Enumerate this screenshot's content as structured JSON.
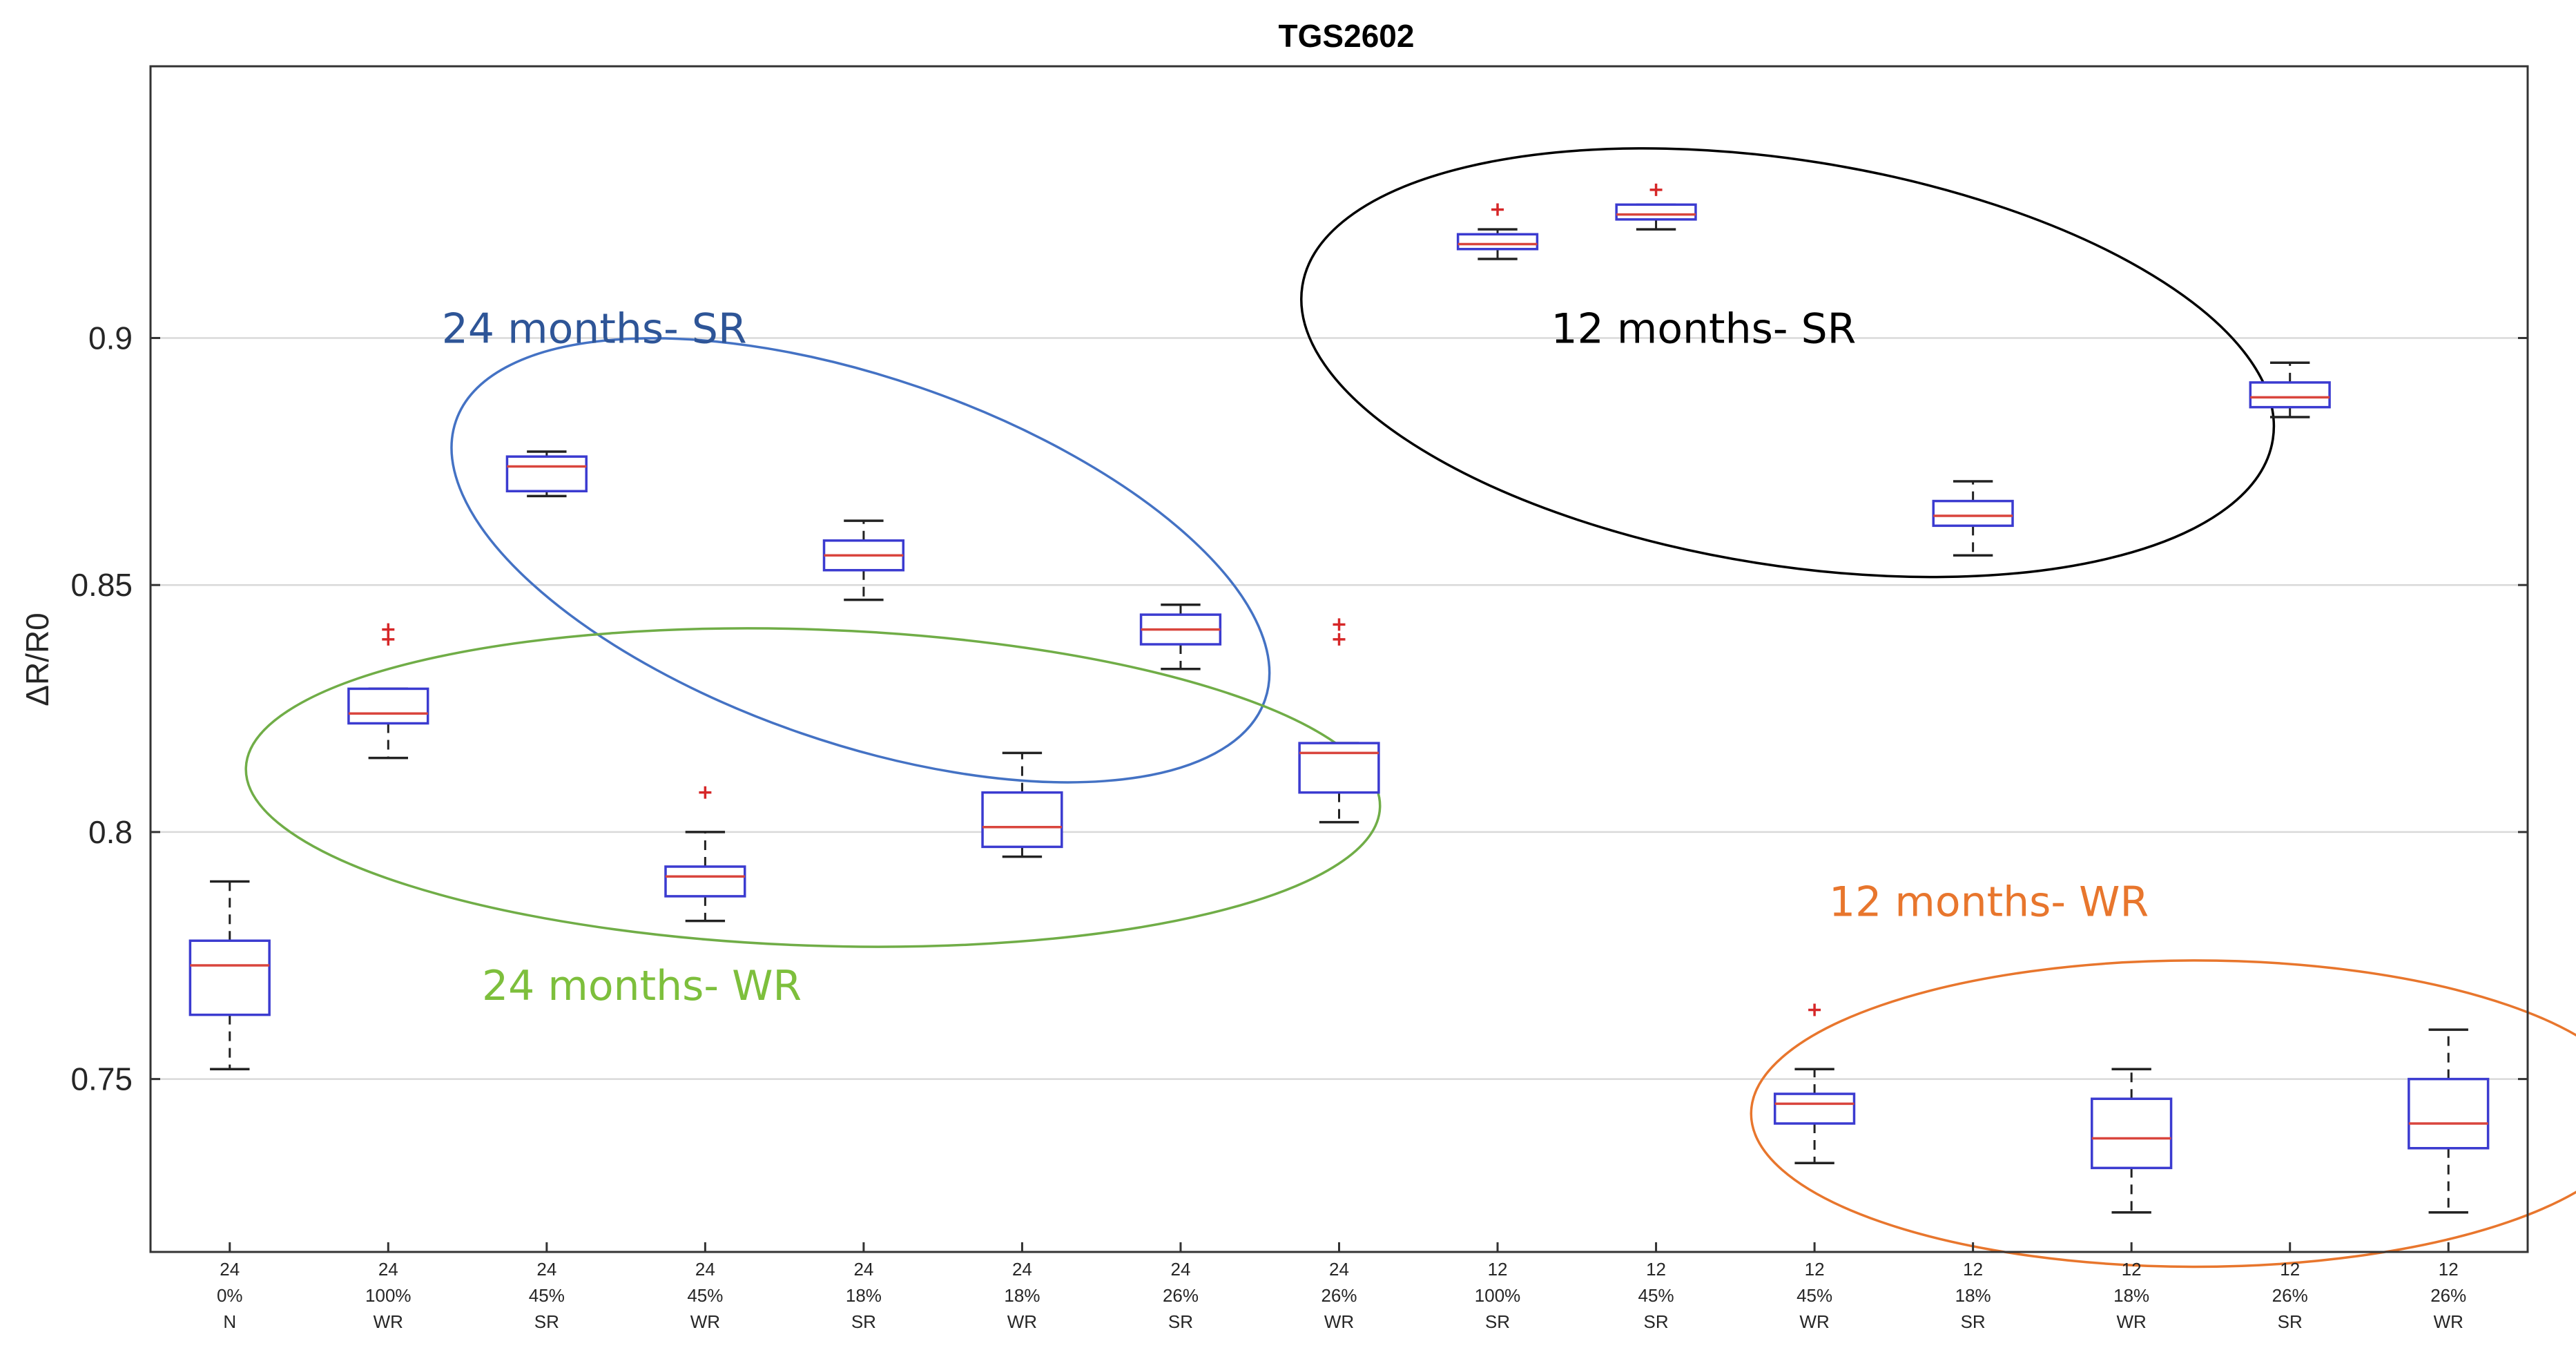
{
  "chart_data": {
    "type": "box",
    "title": "TGS2602",
    "xlabel": "",
    "ylabel": "ΔR/R0",
    "ylim": [
      0.715,
      0.955
    ],
    "yticks": [
      0.75,
      0.8,
      0.85,
      0.9
    ],
    "ytick_labels": [
      "0.75",
      "0.8",
      "0.85",
      "0.9"
    ],
    "grid": "horizontal",
    "categories": [
      {
        "lines": [
          "24",
          "0%",
          "N"
        ],
        "min": 0.752,
        "q1": 0.763,
        "median": 0.773,
        "q3": 0.778,
        "max": 0.79,
        "outliers": []
      },
      {
        "lines": [
          "24",
          "100%",
          "WR"
        ],
        "min": 0.815,
        "q1": 0.822,
        "median": 0.824,
        "q3": 0.829,
        "max": 0.829,
        "outliers": [
          0.839,
          0.841
        ]
      },
      {
        "lines": [
          "24",
          "45%",
          "SR"
        ],
        "min": 0.868,
        "q1": 0.869,
        "median": 0.874,
        "q3": 0.876,
        "max": 0.877,
        "outliers": []
      },
      {
        "lines": [
          "24",
          "45%",
          "WR"
        ],
        "min": 0.782,
        "q1": 0.787,
        "median": 0.791,
        "q3": 0.793,
        "max": 0.8,
        "outliers": [
          0.808
        ]
      },
      {
        "lines": [
          "24",
          "18%",
          "SR"
        ],
        "min": 0.847,
        "q1": 0.853,
        "median": 0.856,
        "q3": 0.859,
        "max": 0.863,
        "outliers": []
      },
      {
        "lines": [
          "24",
          "18%",
          "WR"
        ],
        "min": 0.795,
        "q1": 0.797,
        "median": 0.801,
        "q3": 0.808,
        "max": 0.816,
        "outliers": []
      },
      {
        "lines": [
          "24",
          "26%",
          "SR"
        ],
        "min": 0.833,
        "q1": 0.838,
        "median": 0.841,
        "q3": 0.844,
        "max": 0.846,
        "outliers": []
      },
      {
        "lines": [
          "24",
          "26%",
          "WR"
        ],
        "min": 0.802,
        "q1": 0.808,
        "median": 0.816,
        "q3": 0.818,
        "max": 0.818,
        "outliers": [
          0.839,
          0.842
        ]
      },
      {
        "lines": [
          "12",
          "100%",
          "SR"
        ],
        "min": 0.916,
        "q1": 0.918,
        "median": 0.919,
        "q3": 0.921,
        "max": 0.922,
        "outliers": [
          0.926
        ]
      },
      {
        "lines": [
          "12",
          "45%",
          "SR"
        ],
        "min": 0.922,
        "q1": 0.924,
        "median": 0.925,
        "q3": 0.927,
        "max": 0.927,
        "outliers": [
          0.93
        ]
      },
      {
        "lines": [
          "12",
          "45%",
          "WR"
        ],
        "min": 0.733,
        "q1": 0.741,
        "median": 0.745,
        "q3": 0.747,
        "max": 0.752,
        "outliers": [
          0.764
        ]
      },
      {
        "lines": [
          "12",
          "18%",
          "SR"
        ],
        "min": 0.856,
        "q1": 0.862,
        "median": 0.864,
        "q3": 0.867,
        "max": 0.871,
        "outliers": []
      },
      {
        "lines": [
          "12",
          "18%",
          "WR"
        ],
        "min": 0.723,
        "q1": 0.732,
        "median": 0.738,
        "q3": 0.746,
        "max": 0.752,
        "outliers": []
      },
      {
        "lines": [
          "12",
          "26%",
          "SR"
        ],
        "min": 0.884,
        "q1": 0.886,
        "median": 0.888,
        "q3": 0.891,
        "max": 0.895,
        "outliers": []
      },
      {
        "lines": [
          "12",
          "26%",
          "WR"
        ],
        "min": 0.723,
        "q1": 0.736,
        "median": 0.741,
        "q3": 0.75,
        "max": 0.76,
        "outliers": []
      }
    ],
    "annotations": [
      {
        "text": "24 months- SR",
        "color": "#2e5597",
        "x": 3.3,
        "y": 0.899
      },
      {
        "text": "12 months- SR",
        "color": "#000000",
        "x": 10.3,
        "y": 0.899
      },
      {
        "text": "24 months- WR",
        "color": "#7dbf3c",
        "x": 3.6,
        "y": 0.766
      },
      {
        "text": "12 months- WR",
        "color": "#e8762d",
        "x": 12.1,
        "y": 0.783
      }
    ],
    "groups": [
      {
        "label": "24 months- SR",
        "color": "#4472c4",
        "cx": 4.98,
        "cy": 0.855,
        "rx": 2.7,
        "ry": 0.037,
        "angle": 19
      },
      {
        "label": "24 months- WR",
        "color": "#70ad47",
        "cx": 4.68,
        "cy": 0.809,
        "rx": 3.58,
        "ry": 0.032,
        "angle": 2
      },
      {
        "label": "12 months- SR",
        "color": "#000000",
        "cx": 10.83,
        "cy": 0.895,
        "rx": 3.1,
        "ry": 0.041,
        "angle": 9
      },
      {
        "label": "12 months- WR",
        "color": "#e8762d",
        "cx": 13.4,
        "cy": 0.743,
        "rx": 2.8,
        "ry": 0.031,
        "angle": 0
      }
    ]
  }
}
